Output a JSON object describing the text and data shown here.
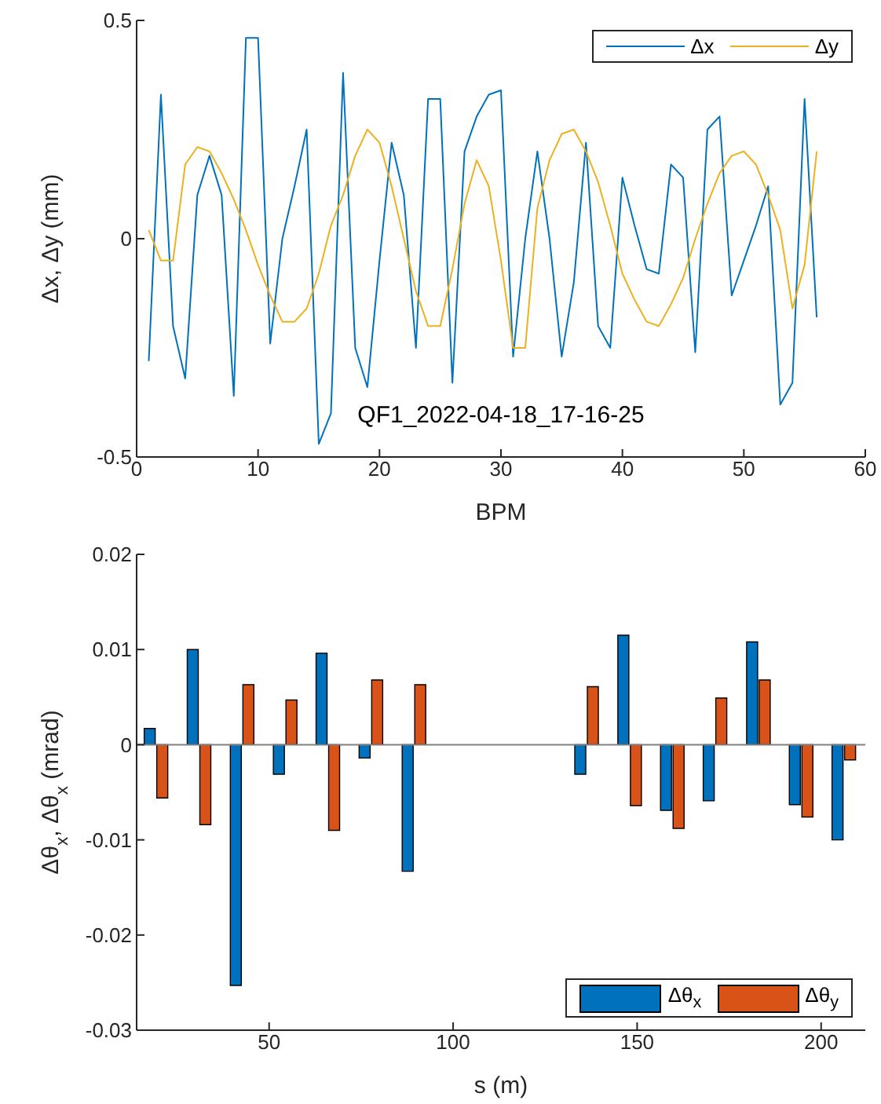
{
  "chart_data": [
    {
      "type": "line",
      "xlabel": "BPM",
      "ylabel": "Δx, Δy (mm)",
      "x": [
        1,
        2,
        3,
        4,
        5,
        6,
        7,
        8,
        9,
        10,
        11,
        12,
        13,
        14,
        15,
        16,
        17,
        18,
        19,
        20,
        21,
        22,
        23,
        24,
        25,
        26,
        27,
        28,
        29,
        30,
        31,
        32,
        33,
        34,
        35,
        36,
        37,
        38,
        39,
        40,
        41,
        42,
        43,
        44,
        45,
        46,
        47,
        48,
        49,
        50,
        51,
        52,
        53,
        54,
        55,
        56
      ],
      "series": [
        {
          "name": "Δx",
          "color": "#0072bd",
          "values": [
            -0.28,
            0.33,
            -0.2,
            -0.32,
            0.1,
            0.19,
            0.1,
            -0.36,
            0.46,
            0.46,
            -0.24,
            0,
            0.12,
            0.25,
            -0.47,
            -0.4,
            0.38,
            -0.25,
            -0.34,
            -0.05,
            0.22,
            0.1,
            -0.25,
            0.32,
            0.32,
            -0.33,
            0.2,
            0.28,
            0.33,
            0.34,
            -0.27,
            0,
            0.2,
            0,
            -0.27,
            -0.1,
            0.22,
            -0.2,
            -0.25,
            0.14,
            0.03,
            -0.07,
            -0.08,
            0.17,
            0.14,
            -0.26,
            0.25,
            0.28,
            -0.13,
            -0.05,
            0.03,
            0.12,
            -0.38,
            -0.33,
            0.32,
            -0.18
          ]
        },
        {
          "name": "Δy",
          "color": "#edb120",
          "values": [
            0.02,
            -0.05,
            -0.05,
            0.17,
            0.21,
            0.2,
            0.15,
            0.09,
            0.02,
            -0.06,
            -0.13,
            -0.19,
            -0.19,
            -0.16,
            -0.08,
            0.03,
            0.1,
            0.19,
            0.25,
            0.22,
            0.12,
            0,
            -0.12,
            -0.2,
            -0.2,
            -0.07,
            0.08,
            0.18,
            0.12,
            -0.05,
            -0.25,
            -0.25,
            0.07,
            0.18,
            0.24,
            0.25,
            0.2,
            0.13,
            0.03,
            -0.08,
            -0.14,
            -0.19,
            -0.2,
            -0.15,
            -0.09,
            0,
            0.08,
            0.15,
            0.19,
            0.2,
            0.17,
            0.1,
            0.02,
            -0.16,
            -0.06,
            0.2
          ]
        }
      ],
      "xlim": [
        0,
        60
      ],
      "xticks": [
        0,
        10,
        20,
        30,
        40,
        50,
        60
      ],
      "ylim": [
        -0.5,
        0.5
      ],
      "yticks": [
        -0.5,
        0,
        0.5
      ],
      "grid": false,
      "legend": "top right",
      "marker": "none",
      "line_style": "solid",
      "annotations": [
        "QF1_2022-04-18_17-16-25"
      ]
    },
    {
      "type": "bar",
      "xlabel": "s (m)",
      "ylabel": "Δθ$_{x}$, Δθ$_{x}$ (mrad)",
      "x": [
        19.3,
        31,
        42.7,
        54.4,
        66,
        77.7,
        89.4,
        136.3,
        148,
        159.6,
        171.2,
        183,
        194.6,
        206.2
      ],
      "series": [
        {
          "name": "Δθ$_{x}$",
          "color": "#0072bd",
          "values": [
            0.0017,
            0.01,
            -0.0253,
            -0.0031,
            0.0096,
            -0.0014,
            -0.0133,
            -0.0031,
            0.0115,
            -0.0069,
            -0.0059,
            0.0108,
            -0.0063,
            -0.01
          ]
        },
        {
          "name": "Δθ$_{y}$",
          "color": "#d95319",
          "values": [
            -0.0056,
            -0.0084,
            0.0063,
            0.0047,
            -0.009,
            0.0068,
            0.0063,
            0.0061,
            -0.0064,
            -0.0088,
            0.0049,
            0.0068,
            -0.0076,
            -0.0016
          ]
        }
      ],
      "xlim": [
        14,
        212
      ],
      "xticks": [
        50,
        100,
        150,
        200
      ],
      "ylim": [
        -0.03,
        0.02
      ],
      "yticks": [
        -0.03,
        -0.02,
        -0.01,
        0,
        0.01,
        0.02
      ],
      "grid": false,
      "legend": "bottom right",
      "ref_lines": [
        {
          "axis": "y",
          "value": 0,
          "color": "#808080"
        }
      ]
    }
  ]
}
